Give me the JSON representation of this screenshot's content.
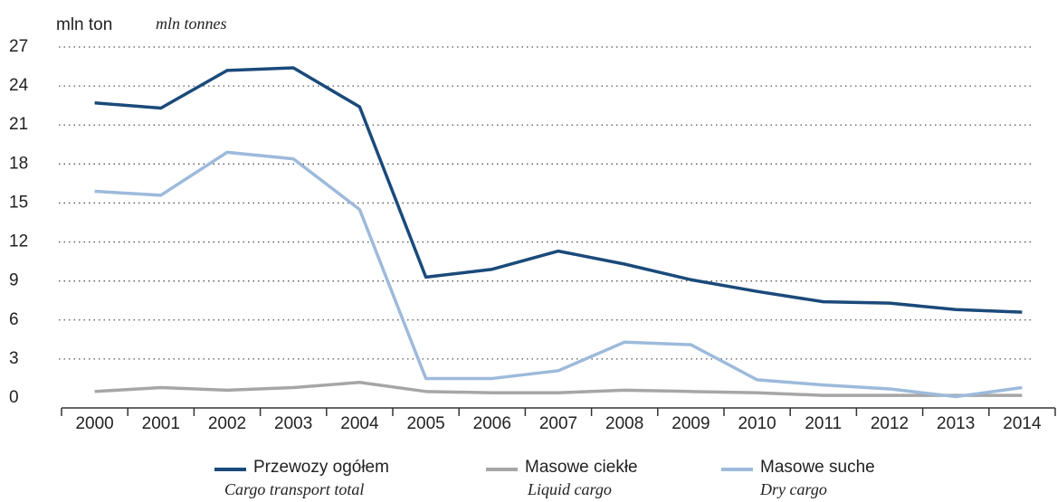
{
  "chart_data": {
    "type": "line",
    "y_label": "mln ton",
    "y_label_en": "mln tonnes",
    "categories": [
      "2000",
      "2001",
      "2002",
      "2003",
      "2004",
      "2005",
      "2006",
      "2007",
      "2008",
      "2009",
      "2010",
      "2011",
      "2012",
      "2013",
      "2014"
    ],
    "series": [
      {
        "name": "Przewozy ogółem",
        "name_en": "Cargo transport total",
        "color": "#1a4a7a",
        "values": [
          22.7,
          22.3,
          25.2,
          25.4,
          22.4,
          9.3,
          9.9,
          11.3,
          10.3,
          9.1,
          8.2,
          7.4,
          7.3,
          6.8,
          6.6
        ]
      },
      {
        "name": "Masowe ciekłe",
        "name_en": "Liquid cargo",
        "color": "#a6a6a6",
        "values": [
          0.5,
          0.8,
          0.6,
          0.8,
          1.2,
          0.5,
          0.4,
          0.4,
          0.6,
          0.5,
          0.4,
          0.2,
          0.2,
          0.2,
          0.2
        ]
      },
      {
        "name": "Masowe suche",
        "name_en": "Dry cargo",
        "color": "#9dbadb",
        "values": [
          15.9,
          15.6,
          18.9,
          18.4,
          14.5,
          1.5,
          1.5,
          2.1,
          4.3,
          4.1,
          1.4,
          1.0,
          0.7,
          0.1,
          0.8
        ]
      }
    ],
    "ylim": [
      0,
      27
    ],
    "yticks": [
      0,
      3,
      6,
      9,
      12,
      15,
      18,
      21,
      24,
      27
    ],
    "grid": true
  }
}
